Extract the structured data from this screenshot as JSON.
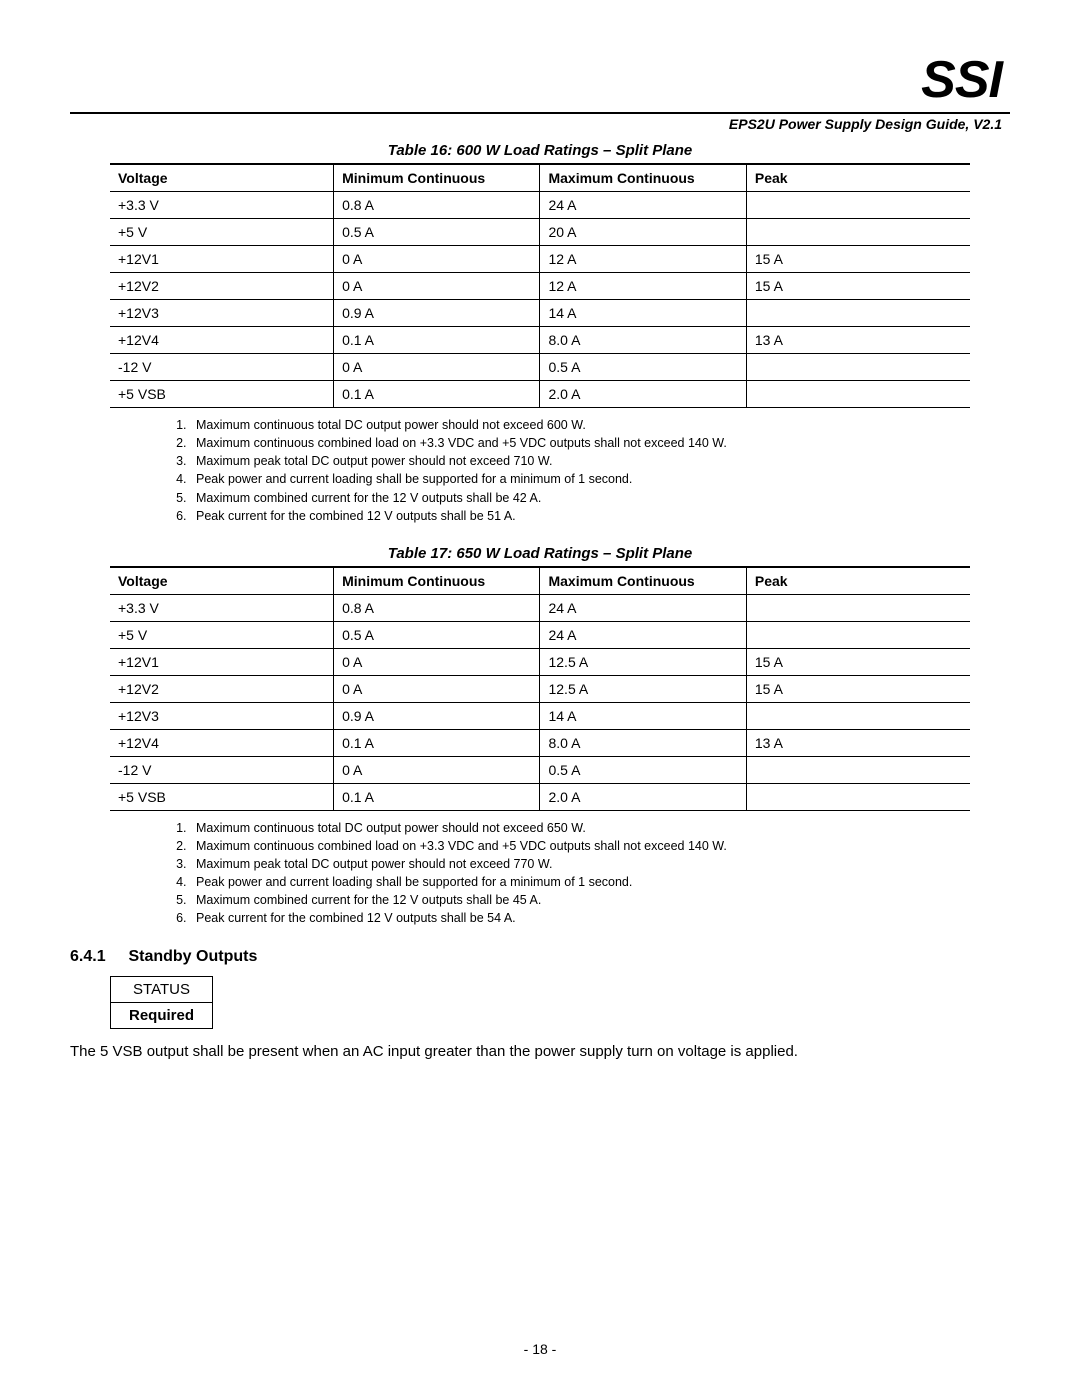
{
  "logo": "SSI",
  "header_subtitle": "EPS2U Power Supply Design Guide, V2.1",
  "table16": {
    "caption": "Table 16:  600 W Load Ratings – Split Plane",
    "columns": [
      "Voltage",
      "Minimum Continuous",
      "Maximum Continuous",
      "Peak"
    ],
    "rows": [
      [
        "+3.3 V",
        "0.8 A",
        "24 A",
        ""
      ],
      [
        "+5 V",
        "0.5 A",
        "20 A",
        ""
      ],
      [
        "+12V1",
        "0 A",
        "12 A",
        "15 A"
      ],
      [
        "+12V2",
        "0 A",
        "12 A",
        "15 A"
      ],
      [
        "+12V3",
        "0.9 A",
        "14 A",
        ""
      ],
      [
        "+12V4",
        "0.1 A",
        "8.0 A",
        "13 A"
      ],
      [
        "-12 V",
        "0 A",
        "0.5 A",
        ""
      ],
      [
        "+5 VSB",
        "0.1 A",
        "2.0 A",
        ""
      ]
    ],
    "notes": [
      "Maximum continuous total DC output power should not exceed 600 W.",
      "Maximum continuous combined load on +3.3 VDC and +5 VDC outputs shall not exceed 140 W.",
      "Maximum peak total DC output power should not exceed 710 W.",
      "Peak power and current loading shall be supported for a minimum of 1 second.",
      "Maximum combined current for the 12 V outputs shall be 42 A.",
      "Peak current for the combined 12 V outputs shall be 51 A."
    ]
  },
  "table17": {
    "caption": "Table 17:  650 W Load Ratings – Split Plane",
    "columns": [
      "Voltage",
      "Minimum Continuous",
      "Maximum Continuous",
      "Peak"
    ],
    "rows": [
      [
        "+3.3 V",
        "0.8 A",
        "24 A",
        ""
      ],
      [
        "+5 V",
        "0.5 A",
        "24 A",
        ""
      ],
      [
        "+12V1",
        "0 A",
        "12.5 A",
        "15 A"
      ],
      [
        "+12V2",
        "0 A",
        "12.5 A",
        "15 A"
      ],
      [
        "+12V3",
        "0.9 A",
        "14 A",
        ""
      ],
      [
        "+12V4",
        "0.1 A",
        "8.0 A",
        "13 A"
      ],
      [
        "-12 V",
        "0 A",
        "0.5 A",
        ""
      ],
      [
        "+5 VSB",
        "0.1 A",
        "2.0 A",
        ""
      ]
    ],
    "notes": [
      "Maximum continuous total DC output power should not exceed 650 W.",
      "Maximum continuous combined load on +3.3 VDC and +5 VDC outputs shall not exceed 140 W.",
      "Maximum peak total DC output power should not exceed 770 W.",
      "Peak power and current loading shall be supported for a minimum of 1 second.",
      "Maximum combined current for the 12 V outputs shall be 45 A.",
      "Peak current for the combined 12 V outputs shall be 54 A."
    ]
  },
  "section": {
    "number": "6.4.1",
    "title": "Standby Outputs"
  },
  "status_box": {
    "label": "STATUS",
    "value": "Required"
  },
  "body_paragraph": "The 5 VSB output shall be present when an AC input greater than the power supply turn on voltage is applied.",
  "page_number": "- 18 -"
}
